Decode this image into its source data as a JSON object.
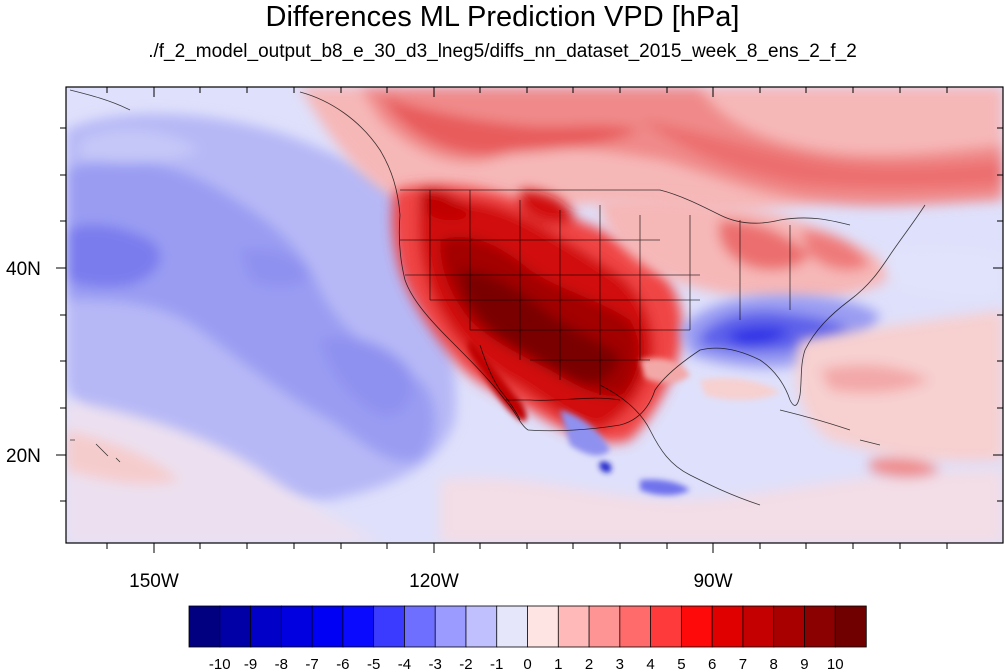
{
  "title": "Differences ML Prediction VPD [hPa]",
  "subtitle": "./f_2_model_output_b8_e_30_d3_lneg5/diffs_nn_dataset_2015_week_8_ens_2_f_2",
  "lat_labels": [
    "40N",
    "20N"
  ],
  "lon_labels": [
    "150W",
    "120W",
    "90W"
  ],
  "colorbar": {
    "labels": [
      "-10",
      "-9",
      "-8",
      "-7",
      "-6",
      "-5",
      "-4",
      "-3",
      "-2",
      "-1",
      "0",
      "1",
      "2",
      "3",
      "4",
      "5",
      "6",
      "7",
      "8",
      "9",
      "10"
    ],
    "colors": [
      "#000080",
      "#0000a6",
      "#0000c8",
      "#0000e0",
      "#0000f5",
      "#0a0aff",
      "#3b3bff",
      "#6f6fff",
      "#9a9aff",
      "#c0c0ff",
      "#e6e6fa",
      "#ffe4e4",
      "#ffb9b9",
      "#ff9494",
      "#ff6a6a",
      "#ff3a3a",
      "#ff0a0a",
      "#e00000",
      "#c40000",
      "#a80000",
      "#8b0000",
      "#700000"
    ]
  },
  "map_background": "#ffffff"
}
